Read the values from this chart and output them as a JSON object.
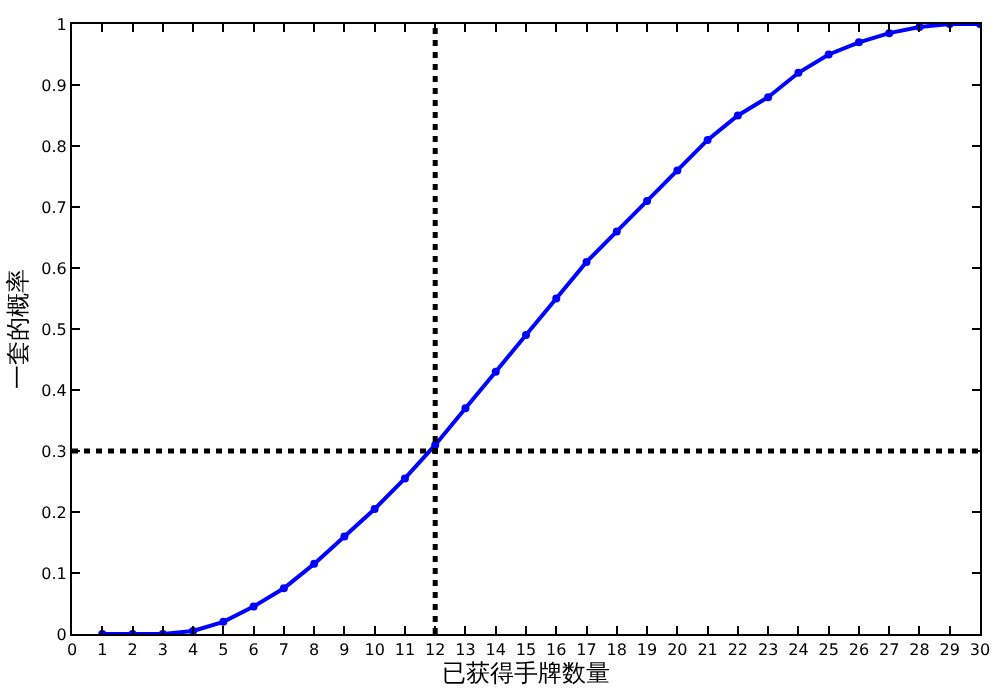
{
  "chart_data": {
    "type": "line",
    "xlabel": "已获得手牌数量",
    "ylabel": "一套的概率",
    "x": [
      1,
      2,
      3,
      4,
      5,
      6,
      7,
      8,
      9,
      10,
      11,
      12,
      13,
      14,
      15,
      16,
      17,
      18,
      19,
      20,
      21,
      22,
      23,
      24,
      25,
      26,
      27,
      28,
      29,
      30
    ],
    "series": [
      {
        "color": "#0000ff",
        "values": [
          0,
          0,
          0,
          0.005,
          0.02,
          0.045,
          0.075,
          0.115,
          0.16,
          0.205,
          0.255,
          0.31,
          0.37,
          0.43,
          0.49,
          0.55,
          0.61,
          0.66,
          0.71,
          0.76,
          0.81,
          0.85,
          0.88,
          0.92,
          0.95,
          0.97,
          0.985,
          0.995,
          1,
          1
        ]
      }
    ],
    "xlim": [
      0,
      30
    ],
    "xticks": [
      0,
      1,
      2,
      3,
      4,
      5,
      6,
      7,
      8,
      9,
      10,
      11,
      12,
      13,
      14,
      15,
      16,
      17,
      18,
      19,
      20,
      21,
      22,
      23,
      24,
      25,
      26,
      27,
      28,
      29,
      30
    ],
    "ylim": [
      0,
      1
    ],
    "yticks": [
      0,
      0.1,
      0.2,
      0.3,
      0.4,
      0.5,
      0.6,
      0.7,
      0.8,
      0.9,
      1
    ],
    "ref_lines": [
      {
        "axis": "x",
        "value": 12,
        "color": "#000000",
        "line_style": "dotted"
      },
      {
        "axis": "y",
        "value": 0.3,
        "color": "#000000",
        "line_style": "dotted"
      }
    ],
    "marker": "circle",
    "line_style": "solid"
  }
}
